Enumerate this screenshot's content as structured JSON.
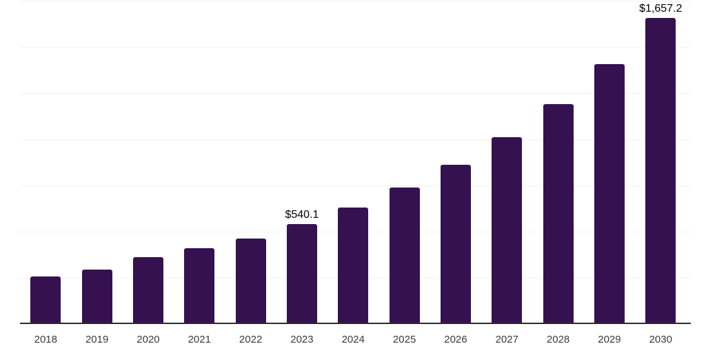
{
  "chart_data": {
    "type": "bar",
    "title": "",
    "xlabel": "",
    "ylabel": "",
    "categories": [
      "2018",
      "2019",
      "2020",
      "2021",
      "2022",
      "2023",
      "2024",
      "2025",
      "2026",
      "2027",
      "2028",
      "2029",
      "2030"
    ],
    "values": [
      257,
      296,
      363,
      411,
      464,
      540.1,
      632,
      738,
      863,
      1011,
      1189,
      1405,
      1657.2
    ],
    "value_labels": {
      "2023": "$540.1",
      "2030": "$1,657.2"
    },
    "ylim": [
      0,
      1750
    ],
    "grid_step": 250,
    "grid": true,
    "legend": false,
    "y_tick_labels_shown": false,
    "colors": {
      "bar": "#351150",
      "axis": "#2b2b2b",
      "gridline": "#f2f2f2",
      "tick_label": "#3a3a3a",
      "data_label": "#000000",
      "background": "#ffffff"
    }
  }
}
